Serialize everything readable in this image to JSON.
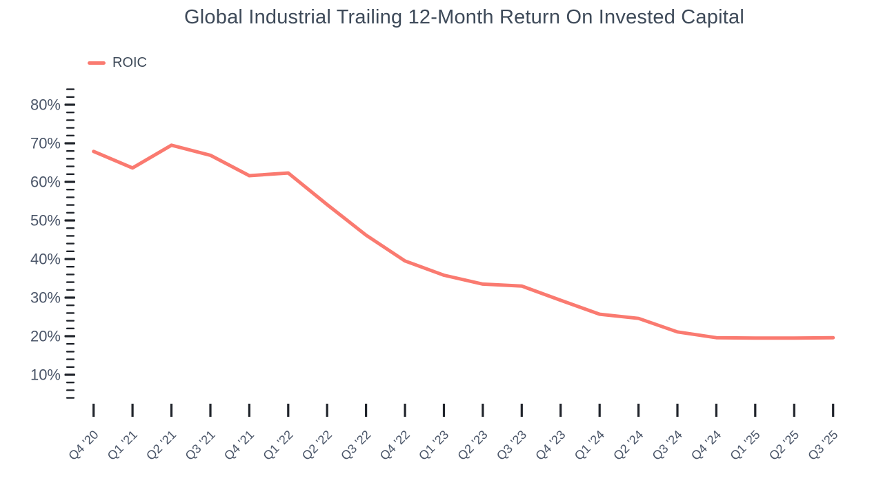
{
  "page": {
    "background": "#ffffff"
  },
  "title": "Global Industrial Trailing 12-Month Return On Invested Capital",
  "legend": {
    "position": "top-left",
    "items": [
      {
        "label": "ROIC",
        "color": "#fa7a70"
      }
    ]
  },
  "colors": {
    "line": "#fa7a70",
    "title_text": "#3e4a59",
    "axis_text": "#4a5568",
    "tick": "#20242b",
    "background": "#ffffff"
  },
  "chart_data": {
    "type": "line",
    "title": "Global Industrial Trailing 12-Month Return On Invested Capital",
    "xlabel": "",
    "ylabel": "",
    "grid": false,
    "legend_position": "top-left",
    "x_tick_labels": [
      "Q4 '20",
      "Q1 '21",
      "Q2 '21",
      "Q3 '21",
      "Q4 '21",
      "Q1 '22",
      "Q2 '22",
      "Q3 '22",
      "Q4 '22",
      "Q1 '23",
      "Q2 '23",
      "Q3 '23",
      "Q4 '23",
      "Q1 '24",
      "Q2 '24",
      "Q3 '24",
      "Q4 '24",
      "Q1 '25",
      "Q2 '25",
      "Q3 '25"
    ],
    "y_axis": {
      "unit": "%",
      "major_ticks": [
        80,
        70,
        60,
        50,
        40,
        30,
        20,
        10
      ],
      "major_tick_labels": [
        "80%",
        "70%",
        "60%",
        "50%",
        "40%",
        "30%",
        "20%",
        "10%"
      ],
      "minor_tick_step": 2,
      "range_shown": [
        4,
        84
      ]
    },
    "categories": [
      "Q4 '20",
      "Q1 '21",
      "Q2 '21",
      "Q3 '21",
      "Q4 '21",
      "Q1 '22",
      "Q2 '22",
      "Q3 '22",
      "Q4 '22",
      "Q1 '23",
      "Q2 '23",
      "Q3 '23",
      "Q4 '23",
      "Q1 '24",
      "Q2 '24",
      "Q3 '24",
      "Q4 '24",
      "Q1 '25",
      "Q2 '25",
      "Q3 '25"
    ],
    "series": [
      {
        "name": "ROIC",
        "color": "#fa7a70",
        "values": [
          67.9,
          63.6,
          69.5,
          66.9,
          61.6,
          62.3,
          54.1,
          46.2,
          39.5,
          35.8,
          33.5,
          33.0,
          29.3,
          25.7,
          24.6,
          21.1,
          19.6,
          19.5,
          19.5,
          19.6
        ]
      }
    ]
  }
}
